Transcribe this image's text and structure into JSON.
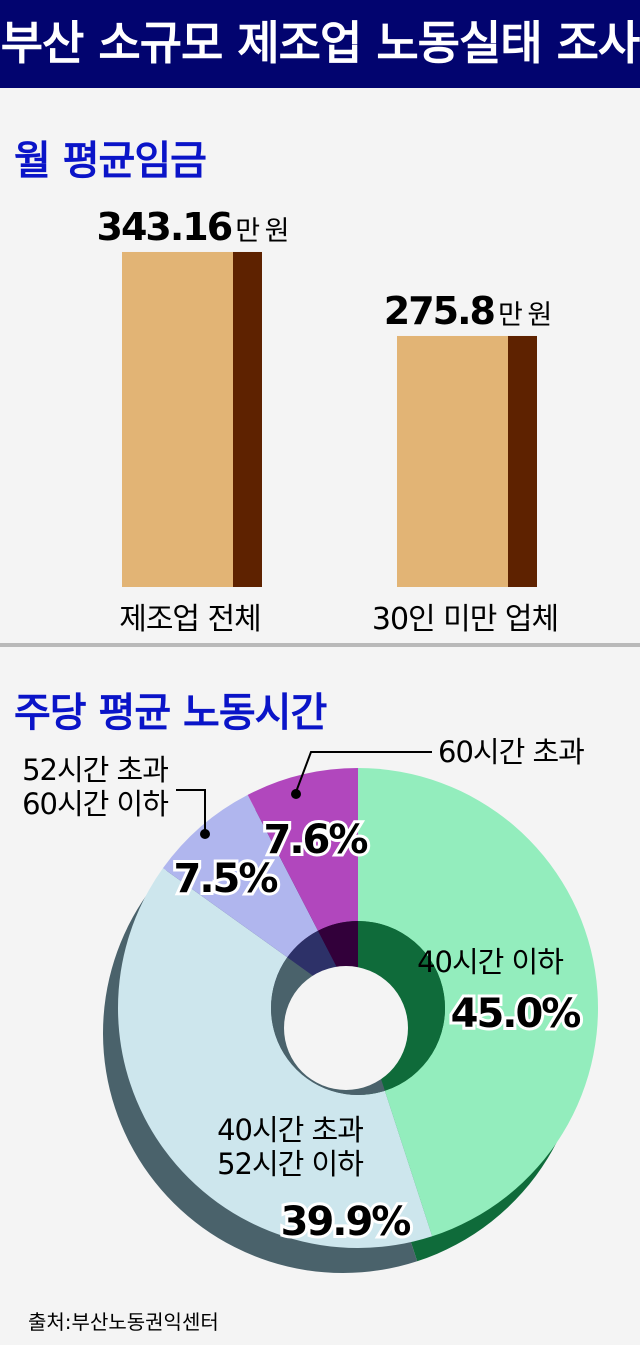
{
  "header": {
    "title": "부산 소규모 제조업 노동실태 조사"
  },
  "source": "출처:부산노동권익센터",
  "chart_data": [
    {
      "type": "bar",
      "title": "월 평균임금",
      "categories": [
        "제조업 전체",
        "30인 미만 업체"
      ],
      "values": [
        343.16,
        275.8
      ],
      "value_labels": [
        "343.16",
        "275.8"
      ],
      "unit": "만 원",
      "colors": {
        "bar": "#e2b475",
        "bar_side": "#5e2200"
      }
    },
    {
      "type": "pie",
      "subtype": "donut",
      "title": "주당 평균 노동시간",
      "slices": [
        {
          "label": "40시간 이하",
          "value": 45.0,
          "value_label": "45.0%",
          "color": "#93edbd",
          "side": "#0f6b3a"
        },
        {
          "label": "40시간 초과 52시간 이하",
          "value": 39.9,
          "value_label": "39.9%",
          "color": "#cde6ed",
          "side": "#4a626b"
        },
        {
          "label": "52시간 초과 60시간 이하",
          "value": 7.5,
          "value_label": "7.5%",
          "color": "#b0b6ee",
          "side": "#2d3168"
        },
        {
          "label": "60시간 초과",
          "value": 7.6,
          "value_label": "7.6%",
          "color": "#b147bd",
          "side": "#32003a"
        }
      ],
      "label_lines": {
        "s0": [
          "40시간 이하"
        ],
        "s1": [
          "40시간 초과",
          "52시간 이하"
        ],
        "s2": [
          "52시간 초과",
          "60시간 이하"
        ],
        "s3": [
          "60시간 초과"
        ]
      }
    }
  ]
}
